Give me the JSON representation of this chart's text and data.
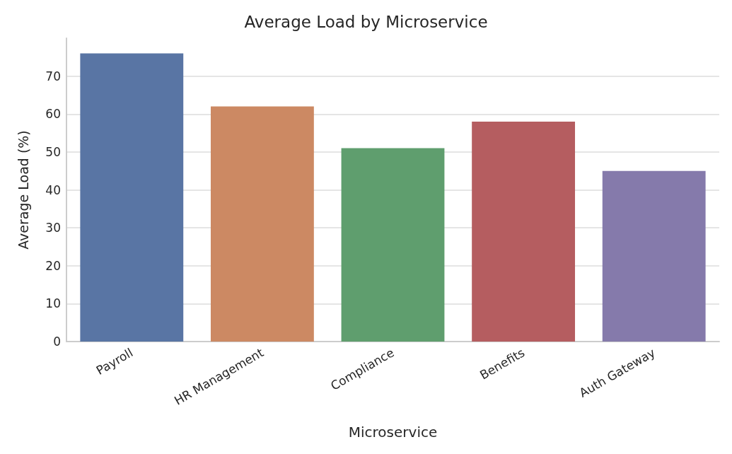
{
  "chart_data": {
    "type": "bar",
    "title": "Average Load by Microservice",
    "xlabel": "Microservice",
    "ylabel": "Average Load (%)",
    "categories": [
      "Payroll",
      "HR Management",
      "Compliance",
      "Benefits",
      "Auth Gateway"
    ],
    "values": [
      76,
      62,
      51,
      58,
      45
    ],
    "colors": [
      "#5975a4",
      "#cc8963",
      "#5f9e6e",
      "#b55d60",
      "#857aab"
    ],
    "ylim": [
      0,
      80
    ],
    "yticks": [
      0,
      10,
      20,
      30,
      40,
      50,
      60,
      70
    ],
    "grid": "y"
  }
}
